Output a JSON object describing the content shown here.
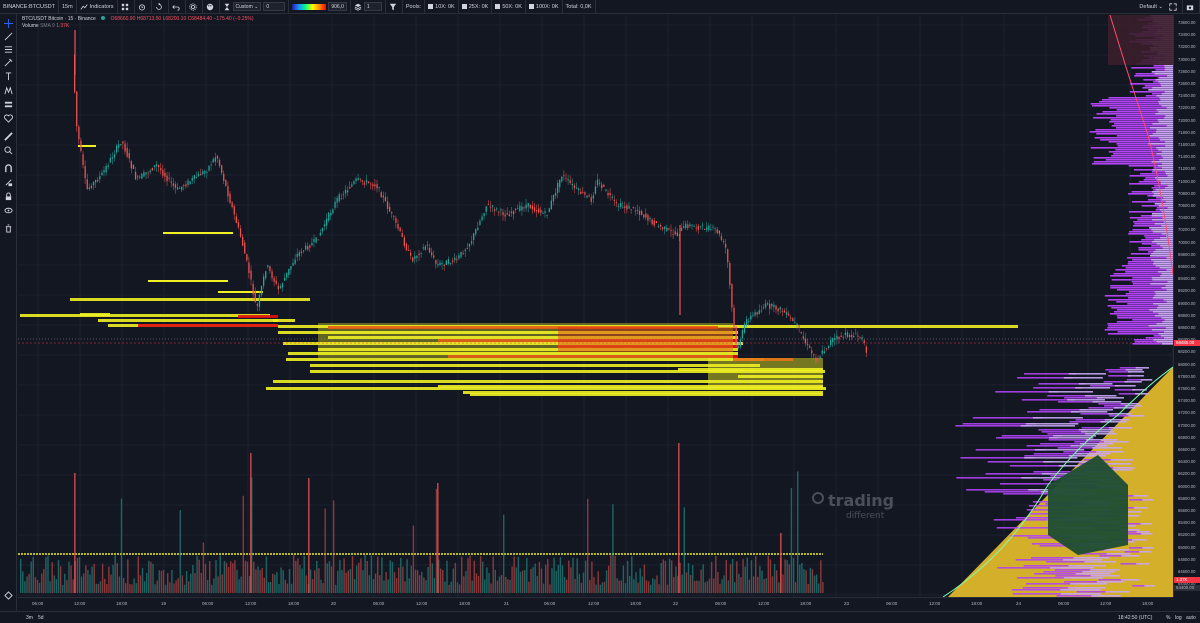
{
  "toolbar": {
    "symbol": "BINANCE:BTCUSDT",
    "interval": "15m",
    "indicators_label": "Indicators",
    "custom_select": "Custom",
    "custom_value": "0",
    "gradient_value": "906,0",
    "count_value": "1",
    "pools_label": "Pools:",
    "pool_10x": "10X: 0K",
    "pool_25x": "25X: 0K",
    "pool_50x": "50X: 0K",
    "pool_100x": "100X: 0K",
    "total": "Total: 0,0K",
    "layout": "Default"
  },
  "legend": {
    "title": "BTC/USDT Bitcoin · 15 · Binance",
    "o": "O68660.90",
    "h": "H68713.50",
    "l": "L68200.10",
    "c": "C68484.40",
    "chg": "−175.40 (−0.25%)",
    "volume_label": "Volume",
    "volume_sma": "SMA 9",
    "volume_value": "1.37K"
  },
  "price_axis": [
    "73600.00",
    "73400.00",
    "73200.00",
    "73000.00",
    "72800.00",
    "72600.00",
    "72400.00",
    "72200.00",
    "72000.00",
    "71800.00",
    "71600.00",
    "71400.00",
    "71200.00",
    "71000.00",
    "70800.00",
    "70600.00",
    "70400.00",
    "70200.00",
    "70000.00",
    "69800.00",
    "69600.00",
    "69400.00",
    "69200.00",
    "69000.00",
    "68800.00",
    "68600.00",
    "68400.00",
    "68200.00",
    "68000.00",
    "67800.00",
    "67600.00",
    "67400.00",
    "67200.00",
    "67000.00",
    "66800.00",
    "66600.00",
    "66400.00",
    "66200.00",
    "66000.00",
    "65800.00",
    "65600.00",
    "65400.00",
    "65200.00",
    "65000.00",
    "64800.00",
    "64600.00",
    "64400.00"
  ],
  "current_price": "68485.00",
  "volume_tag": "1.37K",
  "price_tag_low": "64400.00",
  "time_axis": [
    "06:00",
    "12:00",
    "18:00",
    "19",
    "06:00",
    "12:00",
    "18:00",
    "20",
    "06:00",
    "12:00",
    "18:00",
    "21",
    "06:00",
    "12:00",
    "18:00",
    "22",
    "06:00",
    "12:00",
    "18:00",
    "23",
    "06:00",
    "12:00",
    "18:00",
    "24",
    "06:00",
    "12:00",
    "18:00"
  ],
  "clock": "18:42:50 (UTC)",
  "bottom": {
    "range_3m": "3m",
    "range_5d": "5d",
    "percent": "%",
    "log": "log",
    "auto": "auto"
  },
  "watermark": {
    "main": "trading",
    "sub": "different"
  },
  "colors": {
    "background": "#131722",
    "up": "#26a69a",
    "down": "#ef5350",
    "liq_yellow": "#f0f022",
    "liq_red": "#e01010",
    "profile_purple": "#b044f5",
    "profile_lilac": "#c9a6f5",
    "profile_gold": "#d4b02a",
    "profile_green": "#1e4d33"
  }
}
